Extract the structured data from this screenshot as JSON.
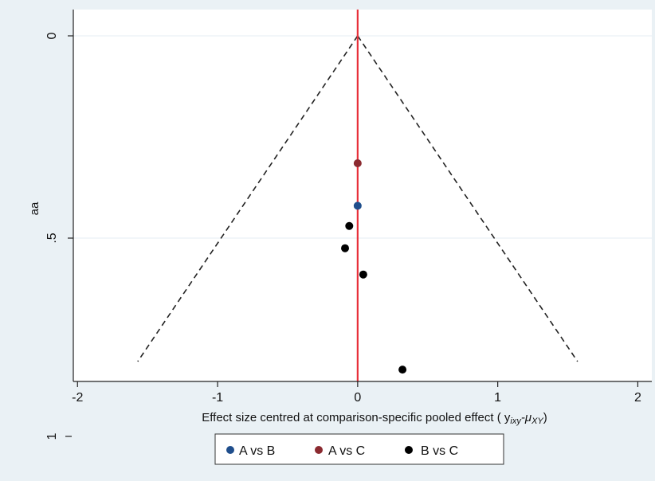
{
  "chart_data": {
    "type": "scatter",
    "xlabel": "Effect size centred at comparison-specific pooled effect ( y",
    "xlabel_math": "ixy",
    "xlabel_math2": "-μ",
    "xlabel_math3": "XY",
    "xlabel_close": ")",
    "ylabel": "aa",
    "xlim": [
      -2,
      2
    ],
    "ylim": [
      0,
      0.85
    ],
    "y_reversed": true,
    "x_ticks": [
      -2,
      -1,
      0,
      1,
      2
    ],
    "x_tick_labels": [
      "-2",
      "-1",
      "0",
      "1",
      "2"
    ],
    "y_ticks": [
      0,
      0.5
    ],
    "y_tick_labels": [
      "0",
      ".5"
    ],
    "y_extra_tick_label": "1",
    "grid": true,
    "reference_line": {
      "x": 0,
      "color": "#e8303a"
    },
    "funnel": {
      "apex": [
        0,
        0
      ],
      "base_y": 0.805,
      "base_half_width": 1.57
    },
    "legend": {
      "placement": "bottom-center"
    },
    "series": [
      {
        "name": "A vs B",
        "color": "#1f4e8c",
        "points": [
          [
            0.0,
            0.42
          ]
        ]
      },
      {
        "name": "A vs C",
        "color": "#8b2a30",
        "points": [
          [
            0.0,
            0.315
          ]
        ]
      },
      {
        "name": "B vs C",
        "color": "#000000",
        "points": [
          [
            -0.06,
            0.47
          ],
          [
            -0.09,
            0.525
          ],
          [
            0.04,
            0.59
          ],
          [
            0.32,
            0.825
          ]
        ]
      }
    ]
  }
}
